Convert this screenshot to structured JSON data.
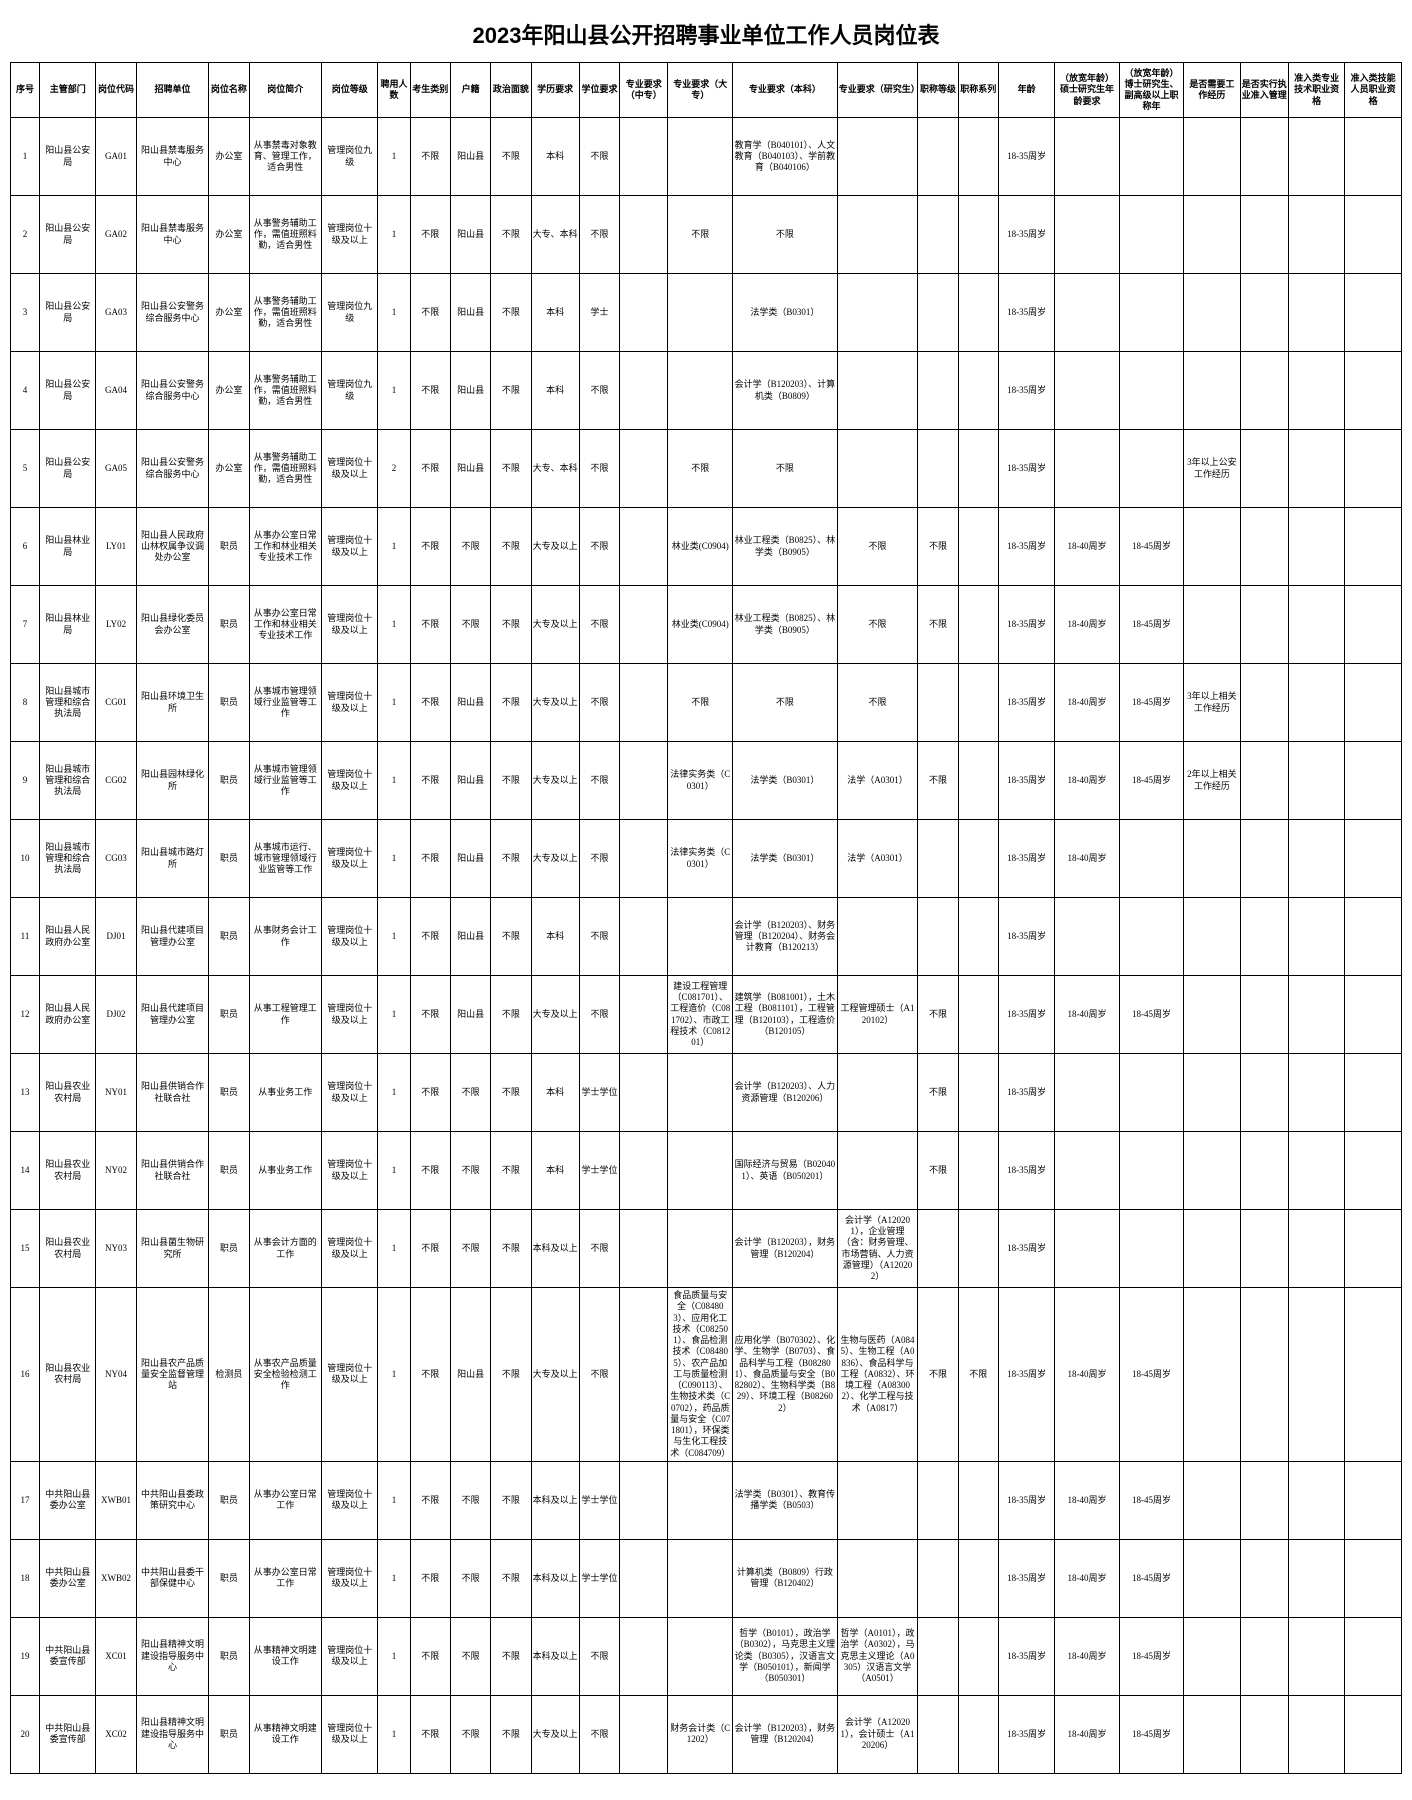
{
  "title": "2023年阳山县公开招聘事业单位工作人员岗位表",
  "columns": [
    "序号",
    "主管部门",
    "岗位代码",
    "招聘单位",
    "岗位名称",
    "岗位简介",
    "岗位等级",
    "聘用人数",
    "考生类别",
    "户籍",
    "政治面貌",
    "学历要求",
    "学位要求",
    "专业要求（中专）",
    "专业要求（大专）",
    "专业要求（本科）",
    "专业要求（研究生）",
    "职称等级",
    "职称系列",
    "年龄",
    "（放宽年龄）硕士研究生年龄要求",
    "（放宽年龄）博士研究生、副高级以上职称年",
    "是否需要工作经历",
    "是否实行执业准入管理",
    "准入类专业技术职业资格",
    "准入类技能人员职业资格"
  ],
  "rows": [
    {
      "seq": "1",
      "dept": "阳山县公安局",
      "code": "GA01",
      "unit": "阳山县禁毒服务中心",
      "pos": "办公室",
      "desc": "从事禁毒对象教育、管理工作，适合男性",
      "level": "管理岗位九级",
      "num": "1",
      "src": "不限",
      "hukou": "阳山县",
      "pol": "不限",
      "edu": "本科",
      "deg": "不限",
      "zz": "",
      "dz": "",
      "bk": "教育学（B040101）、人文教育（B040103）、学前教育（B040106）",
      "yjs": "",
      "zcdj": "",
      "zcxl": "",
      "age": "18-35周岁",
      "age2": "",
      "age3": "",
      "exp": "",
      "mgmt": "",
      "zyzg": "",
      "zyzg2": ""
    },
    {
      "seq": "2",
      "dept": "阳山县公安局",
      "code": "GA02",
      "unit": "阳山县禁毒服务中心",
      "pos": "办公室",
      "desc": "从事警务辅助工作，需值班照料勤，适合男性",
      "level": "管理岗位十级及以上",
      "num": "1",
      "src": "不限",
      "hukou": "阳山县",
      "pol": "不限",
      "edu": "大专、本科",
      "deg": "不限",
      "zz": "",
      "dz": "不限",
      "bk": "不限",
      "yjs": "",
      "zcdj": "",
      "zcxl": "",
      "age": "18-35周岁",
      "age2": "",
      "age3": "",
      "exp": "",
      "mgmt": "",
      "zyzg": "",
      "zyzg2": ""
    },
    {
      "seq": "3",
      "dept": "阳山县公安局",
      "code": "GA03",
      "unit": "阳山县公安警务综合服务中心",
      "pos": "办公室",
      "desc": "从事警务辅助工作，需值班照料勤，适合男性",
      "level": "管理岗位九级",
      "num": "1",
      "src": "不限",
      "hukou": "阳山县",
      "pol": "不限",
      "edu": "本科",
      "deg": "学士",
      "zz": "",
      "dz": "",
      "bk": "法学类（B0301）",
      "yjs": "",
      "zcdj": "",
      "zcxl": "",
      "age": "18-35周岁",
      "age2": "",
      "age3": "",
      "exp": "",
      "mgmt": "",
      "zyzg": "",
      "zyzg2": ""
    },
    {
      "seq": "4",
      "dept": "阳山县公安局",
      "code": "GA04",
      "unit": "阳山县公安警务综合服务中心",
      "pos": "办公室",
      "desc": "从事警务辅助工作，需值班照料勤，适合男性",
      "level": "管理岗位九级",
      "num": "1",
      "src": "不限",
      "hukou": "阳山县",
      "pol": "不限",
      "edu": "本科",
      "deg": "不限",
      "zz": "",
      "dz": "",
      "bk": "会计学（B120203）、计算机类（B0809）",
      "yjs": "",
      "zcdj": "",
      "zcxl": "",
      "age": "18-35周岁",
      "age2": "",
      "age3": "",
      "exp": "",
      "mgmt": "",
      "zyzg": "",
      "zyzg2": ""
    },
    {
      "seq": "5",
      "dept": "阳山县公安局",
      "code": "GA05",
      "unit": "阳山县公安警务综合服务中心",
      "pos": "办公室",
      "desc": "从事警务辅助工作，需值班照料勤，适合男性",
      "level": "管理岗位十级及以上",
      "num": "2",
      "src": "不限",
      "hukou": "阳山县",
      "pol": "不限",
      "edu": "大专、本科",
      "deg": "不限",
      "zz": "",
      "dz": "不限",
      "bk": "不限",
      "yjs": "",
      "zcdj": "",
      "zcxl": "",
      "age": "18-35周岁",
      "age2": "",
      "age3": "",
      "exp": "3年以上公安工作经历",
      "mgmt": "",
      "zyzg": "",
      "zyzg2": ""
    },
    {
      "seq": "6",
      "dept": "阳山县林业局",
      "code": "LY01",
      "unit": "阳山县人民政府山林权属争议调处办公室",
      "pos": "职员",
      "desc": "从事办公室日常工作和林业相关专业技术工作",
      "level": "管理岗位十级及以上",
      "num": "1",
      "src": "不限",
      "hukou": "不限",
      "pol": "不限",
      "edu": "大专及以上",
      "deg": "不限",
      "zz": "",
      "dz": "林业类(C0904)",
      "bk": "林业工程类（B0825）、林学类（B0905）",
      "yjs": "不限",
      "zcdj": "不限",
      "zcxl": "",
      "age": "18-35周岁",
      "age2": "18-40周岁",
      "age3": "18-45周岁",
      "exp": "",
      "mgmt": "",
      "zyzg": "",
      "zyzg2": ""
    },
    {
      "seq": "7",
      "dept": "阳山县林业局",
      "code": "LY02",
      "unit": "阳山县绿化委员会办公室",
      "pos": "职员",
      "desc": "从事办公室日常工作和林业相关专业技术工作",
      "level": "管理岗位十级及以上",
      "num": "1",
      "src": "不限",
      "hukou": "不限",
      "pol": "不限",
      "edu": "大专及以上",
      "deg": "不限",
      "zz": "",
      "dz": "林业类(C0904)",
      "bk": "林业工程类（B0825）、林学类（B0905）",
      "yjs": "不限",
      "zcdj": "不限",
      "zcxl": "",
      "age": "18-35周岁",
      "age2": "18-40周岁",
      "age3": "18-45周岁",
      "exp": "",
      "mgmt": "",
      "zyzg": "",
      "zyzg2": ""
    },
    {
      "seq": "8",
      "dept": "阳山县城市管理和综合执法局",
      "code": "CG01",
      "unit": "阳山县环境卫生所",
      "pos": "职员",
      "desc": "从事城市管理领域行业监管等工作",
      "level": "管理岗位十级及以上",
      "num": "1",
      "src": "不限",
      "hukou": "阳山县",
      "pol": "不限",
      "edu": "大专及以上",
      "deg": "不限",
      "zz": "",
      "dz": "不限",
      "bk": "不限",
      "yjs": "不限",
      "zcdj": "",
      "zcxl": "",
      "age": "18-35周岁",
      "age2": "18-40周岁",
      "age3": "18-45周岁",
      "exp": "3年以上相关工作经历",
      "mgmt": "",
      "zyzg": "",
      "zyzg2": ""
    },
    {
      "seq": "9",
      "dept": "阳山县城市管理和综合执法局",
      "code": "CG02",
      "unit": "阳山县园林绿化所",
      "pos": "职员",
      "desc": "从事城市管理领域行业监管等工作",
      "level": "管理岗位十级及以上",
      "num": "1",
      "src": "不限",
      "hukou": "阳山县",
      "pol": "不限",
      "edu": "大专及以上",
      "deg": "不限",
      "zz": "",
      "dz": "法律实务类（C0301）",
      "bk": "法学类（B0301）",
      "yjs": "法学（A0301）",
      "zcdj": "不限",
      "zcxl": "",
      "age": "18-35周岁",
      "age2": "18-40周岁",
      "age3": "18-45周岁",
      "exp": "2年以上相关工作经历",
      "mgmt": "",
      "zyzg": "",
      "zyzg2": ""
    },
    {
      "seq": "10",
      "dept": "阳山县城市管理和综合执法局",
      "code": "CG03",
      "unit": "阳山县城市路灯所",
      "pos": "职员",
      "desc": "从事城市运行、城市管理领域行业监管等工作",
      "level": "管理岗位十级及以上",
      "num": "1",
      "src": "不限",
      "hukou": "阳山县",
      "pol": "不限",
      "edu": "大专及以上",
      "deg": "不限",
      "zz": "",
      "dz": "法律实务类（C0301）",
      "bk": "法学类（B0301）",
      "yjs": "法学（A0301）",
      "zcdj": "",
      "zcxl": "",
      "age": "18-35周岁",
      "age2": "18-40周岁",
      "age3": "",
      "exp": "",
      "mgmt": "",
      "zyzg": "",
      "zyzg2": ""
    },
    {
      "seq": "11",
      "dept": "阳山县人民政府办公室",
      "code": "DJ01",
      "unit": "阳山县代建项目管理办公室",
      "pos": "职员",
      "desc": "从事财务会计工作",
      "level": "管理岗位十级及以上",
      "num": "1",
      "src": "不限",
      "hukou": "阳山县",
      "pol": "不限",
      "edu": "本科",
      "deg": "不限",
      "zz": "",
      "dz": "",
      "bk": "会计学（B120203）、财务管理（B120204）、财务会计教育（B120213）",
      "yjs": "",
      "zcdj": "",
      "zcxl": "",
      "age": "18-35周岁",
      "age2": "",
      "age3": "",
      "exp": "",
      "mgmt": "",
      "zyzg": "",
      "zyzg2": ""
    },
    {
      "seq": "12",
      "dept": "阳山县人民政府办公室",
      "code": "DJ02",
      "unit": "阳山县代建项目管理办公室",
      "pos": "职员",
      "desc": "从事工程管理工作",
      "level": "管理岗位十级及以上",
      "num": "1",
      "src": "不限",
      "hukou": "阳山县",
      "pol": "不限",
      "edu": "大专及以上",
      "deg": "不限",
      "zz": "",
      "dz": "建设工程管理（C081701）、工程造价（C081702）、市政工程技术（C081201）",
      "bk": "建筑学（B081001），土木工程（B081101），工程管理（B120103），工程造价（B120105）",
      "yjs": "工程管理硕士（A120102）",
      "zcdj": "不限",
      "zcxl": "",
      "age": "18-35周岁",
      "age2": "18-40周岁",
      "age3": "18-45周岁",
      "exp": "",
      "mgmt": "",
      "zyzg": "",
      "zyzg2": ""
    },
    {
      "seq": "13",
      "dept": "阳山县农业农村局",
      "code": "NY01",
      "unit": "阳山县供销合作社联合社",
      "pos": "职员",
      "desc": "从事业务工作",
      "level": "管理岗位十级及以上",
      "num": "1",
      "src": "不限",
      "hukou": "不限",
      "pol": "不限",
      "edu": "本科",
      "deg": "学士学位",
      "zz": "",
      "dz": "",
      "bk": "会计学（B120203）、人力资源管理（B120206）",
      "yjs": "",
      "zcdj": "不限",
      "zcxl": "",
      "age": "18-35周岁",
      "age2": "",
      "age3": "",
      "exp": "",
      "mgmt": "",
      "zyzg": "",
      "zyzg2": ""
    },
    {
      "seq": "14",
      "dept": "阳山县农业农村局",
      "code": "NY02",
      "unit": "阳山县供销合作社联合社",
      "pos": "职员",
      "desc": "从事业务工作",
      "level": "管理岗位十级及以上",
      "num": "1",
      "src": "不限",
      "hukou": "不限",
      "pol": "不限",
      "edu": "本科",
      "deg": "学士学位",
      "zz": "",
      "dz": "",
      "bk": "国际经济与贸易（B020401）、英语（B050201）",
      "yjs": "",
      "zcdj": "不限",
      "zcxl": "",
      "age": "18-35周岁",
      "age2": "",
      "age3": "",
      "exp": "",
      "mgmt": "",
      "zyzg": "",
      "zyzg2": ""
    },
    {
      "seq": "15",
      "dept": "阳山县农业农村局",
      "code": "NY03",
      "unit": "阳山县菌生物研究所",
      "pos": "职员",
      "desc": "从事会计方面的工作",
      "level": "管理岗位十级及以上",
      "num": "1",
      "src": "不限",
      "hukou": "不限",
      "pol": "不限",
      "edu": "本科及以上",
      "deg": "不限",
      "zz": "",
      "dz": "",
      "bk": "会计学（B120203），财务管理（B120204）",
      "yjs": "会计学（A120201），企业管理（含：财务管理、市场营销、人力资源管理）（A120202）",
      "zcdj": "",
      "zcxl": "",
      "age": "18-35周岁",
      "age2": "",
      "age3": "",
      "exp": "",
      "mgmt": "",
      "zyzg": "",
      "zyzg2": ""
    },
    {
      "seq": "16",
      "dept": "阳山县农业农村局",
      "code": "NY04",
      "unit": "阳山县农产品质量安全监督管理站",
      "pos": "检测员",
      "desc": "从事农产品质量安全检验检测工作",
      "level": "管理岗位十级及以上",
      "num": "1",
      "src": "不限",
      "hukou": "阳山县",
      "pol": "不限",
      "edu": "大专及以上",
      "deg": "不限",
      "zz": "",
      "dz": "食品质量与安全（C084803）、应用化工技术（C082501）、食品检测技术（C084805）、农产品加工与质量检测（C090113）、生物技术类（C0702），药品质量与安全（C071801），环保类与生化工程技术（C084709）",
      "bk": "应用化学（B070302）、化学、生物学（B0703）、食品科学与工程（B082801）、食品质量与安全（B082802）、生物科学类（B829）、环境工程（B082602）",
      "yjs": "生物与医药（A0845）、生物工程（A0836）、食品科学与工程（A0832）、环境工程（A083002）、化学工程与技术（A0817）",
      "zcdj": "不限",
      "zcxl": "不限",
      "age": "18-35周岁",
      "age2": "18-40周岁",
      "age3": "18-45周岁",
      "exp": "",
      "mgmt": "",
      "zyzg": "",
      "zyzg2": ""
    },
    {
      "seq": "17",
      "dept": "中共阳山县委办公室",
      "code": "XWB01",
      "unit": "中共阳山县委政策研究中心",
      "pos": "职员",
      "desc": "从事办公室日常工作",
      "level": "管理岗位十级及以上",
      "num": "1",
      "src": "不限",
      "hukou": "不限",
      "pol": "不限",
      "edu": "本科及以上",
      "deg": "学士学位",
      "zz": "",
      "dz": "",
      "bk": "法学类（B0301）、教育传播学类（B0503）",
      "yjs": "",
      "zcdj": "",
      "zcxl": "",
      "age": "18-35周岁",
      "age2": "18-40周岁",
      "age3": "18-45周岁",
      "exp": "",
      "mgmt": "",
      "zyzg": "",
      "zyzg2": ""
    },
    {
      "seq": "18",
      "dept": "中共阳山县委办公室",
      "code": "XWB02",
      "unit": "中共阳山县委干部保健中心",
      "pos": "职员",
      "desc": "从事办公室日常工作",
      "level": "管理岗位十级及以上",
      "num": "1",
      "src": "不限",
      "hukou": "不限",
      "pol": "不限",
      "edu": "本科及以上",
      "deg": "学士学位",
      "zz": "",
      "dz": "",
      "bk": "计算机类（B0809）行政管理（B120402）",
      "yjs": "",
      "zcdj": "",
      "zcxl": "",
      "age": "18-35周岁",
      "age2": "18-40周岁",
      "age3": "18-45周岁",
      "exp": "",
      "mgmt": "",
      "zyzg": "",
      "zyzg2": ""
    },
    {
      "seq": "19",
      "dept": "中共阳山县委宣传部",
      "code": "XC01",
      "unit": "阳山县精神文明建设指导服务中心",
      "pos": "职员",
      "desc": "从事精神文明建设工作",
      "level": "管理岗位十级及以上",
      "num": "1",
      "src": "不限",
      "hukou": "不限",
      "pol": "不限",
      "edu": "本科及以上",
      "deg": "不限",
      "zz": "",
      "dz": "",
      "bk": "哲学（B0101），政治学（B0302），马克思主义理论类（B0305），汉语言文学（B050101），新闻学（B050301）",
      "yjs": "哲学（A0101），政治学（A0302），马克思主义理论（A0305）汉语言文学（A0501）",
      "zcdj": "",
      "zcxl": "",
      "age": "18-35周岁",
      "age2": "18-40周岁",
      "age3": "18-45周岁",
      "exp": "",
      "mgmt": "",
      "zyzg": "",
      "zyzg2": ""
    },
    {
      "seq": "20",
      "dept": "中共阳山县委宣传部",
      "code": "XC02",
      "unit": "阳山县精神文明建设指导服务中心",
      "pos": "职员",
      "desc": "从事精神文明建设工作",
      "level": "管理岗位十级及以上",
      "num": "1",
      "src": "不限",
      "hukou": "不限",
      "pol": "不限",
      "edu": "大专及以上",
      "deg": "不限",
      "zz": "",
      "dz": "财务会计类（C1202）",
      "bk": "会计学（B120203），财务管理（B120204）",
      "yjs": "会计学（A120201），会计硕士（A120206）",
      "zcdj": "",
      "zcxl": "",
      "age": "18-35周岁",
      "age2": "18-40周岁",
      "age3": "18-45周岁",
      "exp": "",
      "mgmt": "",
      "zyzg": "",
      "zyzg2": ""
    }
  ]
}
